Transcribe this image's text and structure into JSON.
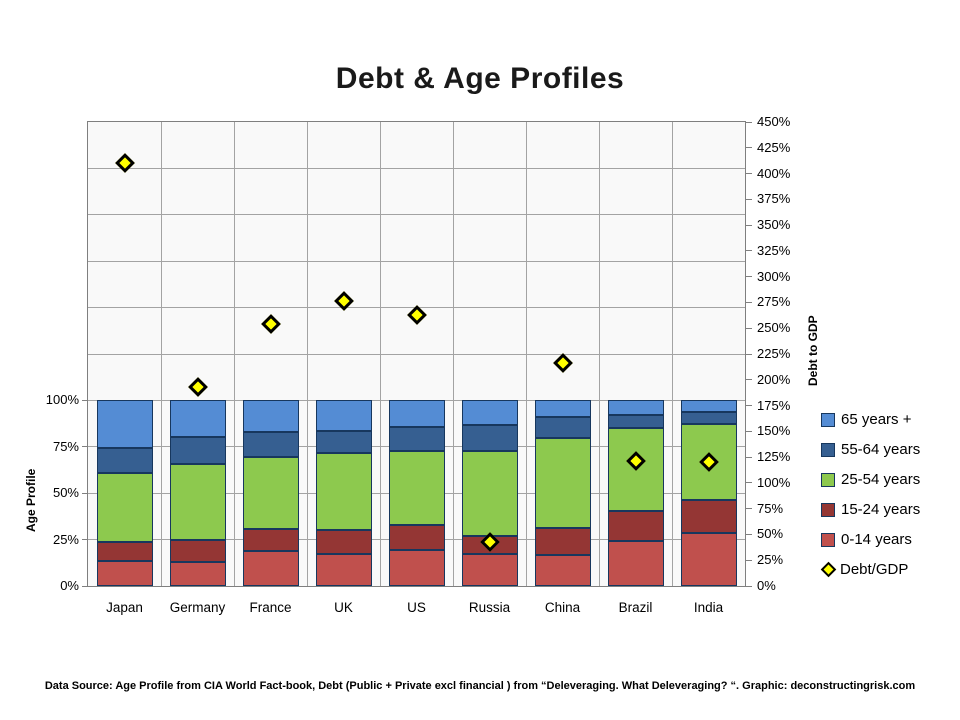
{
  "header": {
    "title": "Debt & Age Profiles"
  },
  "footer": {
    "text": "Data Source: Age Profile from CIA World Fact-book, Debt (Public + Private excl financial ) from “Deleveraging. What Deleveraging? “. Graphic: deconstructingrisk.com"
  },
  "colors": {
    "age_0_14": "#c0504d",
    "age_15_24": "#943634",
    "age_25_54": "#8dc94e",
    "age_55_64": "#365f91",
    "age_65_plus": "#548cd4",
    "debt_marker_fill": "#ffff00",
    "debt_marker_border": "#000000",
    "segment_border": "#17375e",
    "gridline": "#a3a3a3",
    "plot_background": "#f9f9f9"
  },
  "chart_data": {
    "type": "bar",
    "subtype": "stacked-bar-with-scatter-overlay",
    "title": "Debt & Age Profiles",
    "categories": [
      "Japan",
      "Germany",
      "France",
      "UK",
      "US",
      "Russia",
      "China",
      "Brazil",
      "India"
    ],
    "left_axis": {
      "label": "Age Profile",
      "ticks": [
        "0%",
        "25%",
        "50%",
        "75%",
        "100%"
      ],
      "min": 0,
      "max_labeled": 100,
      "plot_top_value": 250,
      "grid": true
    },
    "right_axis": {
      "label": "Debt to GDP",
      "ticks": [
        "0%",
        "25%",
        "50%",
        "75%",
        "100%",
        "125%",
        "150%",
        "175%",
        "200%",
        "225%",
        "250%",
        "275%",
        "300%",
        "325%",
        "350%",
        "375%",
        "400%",
        "425%",
        "450%"
      ],
      "min": 0,
      "max": 450
    },
    "series": [
      {
        "name": "0-14 years",
        "type": "bar",
        "color": "#c0504d",
        "values": [
          13.5,
          13,
          19,
          17.5,
          19.5,
          17,
          16.5,
          24.5,
          28.5
        ]
      },
      {
        "name": "15-24 years",
        "type": "bar",
        "color": "#943634",
        "values": [
          10,
          12,
          11.5,
          12.5,
          13.5,
          10,
          14.5,
          16,
          18
        ]
      },
      {
        "name": "25-54 years",
        "type": "bar",
        "color": "#8dc94e",
        "values": [
          37.5,
          41,
          39,
          41.5,
          40,
          45.5,
          48.5,
          44.5,
          41
        ]
      },
      {
        "name": "55-64 years",
        "type": "bar",
        "color": "#365f91",
        "values": [
          13.5,
          14.5,
          13.5,
          12,
          12.5,
          14.5,
          11.5,
          7,
          6
        ]
      },
      {
        "name": "65 years +",
        "type": "bar",
        "color": "#548cd4",
        "values": [
          25.5,
          19.5,
          17,
          16.5,
          14.5,
          13,
          9,
          8,
          6.5
        ]
      },
      {
        "name": "Debt/GDP",
        "type": "scatter",
        "color": "#ffff00",
        "values": [
          410,
          193,
          254,
          276,
          263,
          43,
          216,
          121,
          120
        ]
      }
    ],
    "legend": [
      {
        "label": "65 years +",
        "swatch": "square",
        "color": "#548cd4"
      },
      {
        "label": "55-64 years",
        "swatch": "square",
        "color": "#365f91"
      },
      {
        "label": "25-54 years",
        "swatch": "square",
        "color": "#8dc94e"
      },
      {
        "label": "15-24 years",
        "swatch": "square",
        "color": "#943634"
      },
      {
        "label": "0-14 years",
        "swatch": "square",
        "color": "#c0504d"
      },
      {
        "label": "Debt/GDP",
        "swatch": "diamond",
        "color": "#ffff00"
      }
    ],
    "legend_position": "right"
  }
}
